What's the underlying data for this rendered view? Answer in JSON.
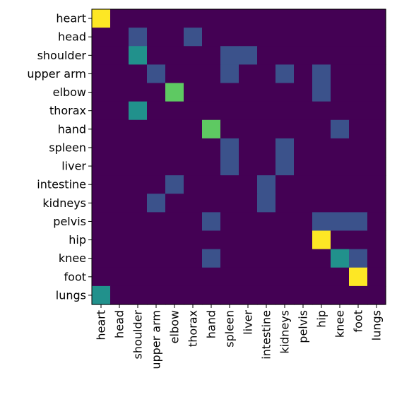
{
  "chart_data": {
    "type": "heatmap",
    "title": "",
    "xlabel": "",
    "ylabel": "",
    "colormap": "viridis",
    "grid": false,
    "row_labels": [
      "heart",
      "head",
      "shoulder",
      "upper arm",
      "elbow",
      "thorax",
      "hand",
      "spleen",
      "liver",
      "intestine",
      "kidneys",
      "pelvis",
      "hip",
      "knee",
      "foot",
      "lungs"
    ],
    "col_labels": [
      "heart",
      "head",
      "shoulder",
      "upper arm",
      "elbow",
      "thorax",
      "hand",
      "spleen",
      "liver",
      "intestine",
      "kidneys",
      "pelvis",
      "hip",
      "knee",
      "foot",
      "lungs"
    ],
    "values": [
      [
        1.0,
        0,
        0,
        0,
        0,
        0,
        0,
        0,
        0,
        0,
        0,
        0,
        0,
        0,
        0,
        0
      ],
      [
        0,
        0,
        0.25,
        0,
        0,
        0.25,
        0,
        0,
        0,
        0,
        0,
        0,
        0,
        0,
        0,
        0
      ],
      [
        0,
        0,
        0.5,
        0,
        0,
        0,
        0,
        0.25,
        0.25,
        0,
        0,
        0,
        0,
        0,
        0,
        0
      ],
      [
        0,
        0,
        0,
        0.25,
        0,
        0,
        0,
        0.25,
        0,
        0,
        0.25,
        0,
        0.25,
        0,
        0,
        0
      ],
      [
        0,
        0,
        0,
        0,
        0.75,
        0,
        0,
        0,
        0,
        0,
        0,
        0,
        0.25,
        0,
        0,
        0
      ],
      [
        0,
        0,
        0.5,
        0,
        0,
        0,
        0,
        0,
        0,
        0,
        0,
        0,
        0,
        0,
        0,
        0
      ],
      [
        0,
        0,
        0,
        0,
        0,
        0,
        0.75,
        0,
        0,
        0,
        0,
        0,
        0,
        0.25,
        0,
        0
      ],
      [
        0,
        0,
        0,
        0,
        0,
        0,
        0,
        0.25,
        0,
        0,
        0.25,
        0,
        0,
        0,
        0,
        0
      ],
      [
        0,
        0,
        0,
        0,
        0,
        0,
        0,
        0.25,
        0,
        0,
        0.25,
        0,
        0,
        0,
        0,
        0
      ],
      [
        0,
        0,
        0,
        0,
        0.25,
        0,
        0,
        0,
        0,
        0.25,
        0,
        0,
        0,
        0,
        0,
        0
      ],
      [
        0,
        0,
        0,
        0.25,
        0,
        0,
        0,
        0,
        0,
        0.25,
        0,
        0,
        0,
        0,
        0,
        0
      ],
      [
        0,
        0,
        0,
        0,
        0,
        0,
        0.25,
        0,
        0,
        0,
        0,
        0,
        0.25,
        0.25,
        0.25,
        0
      ],
      [
        0,
        0,
        0,
        0,
        0,
        0,
        0,
        0,
        0,
        0,
        0,
        0,
        1.0,
        0,
        0,
        0
      ],
      [
        0,
        0,
        0,
        0,
        0,
        0,
        0.25,
        0,
        0,
        0,
        0,
        0,
        0,
        0.5,
        0.25,
        0
      ],
      [
        0,
        0,
        0,
        0,
        0,
        0,
        0,
        0,
        0,
        0,
        0,
        0,
        0,
        0,
        1.0,
        0
      ],
      [
        0.5,
        0,
        0,
        0,
        0,
        0,
        0,
        0,
        0,
        0,
        0,
        0,
        0,
        0,
        0,
        0
      ]
    ]
  }
}
